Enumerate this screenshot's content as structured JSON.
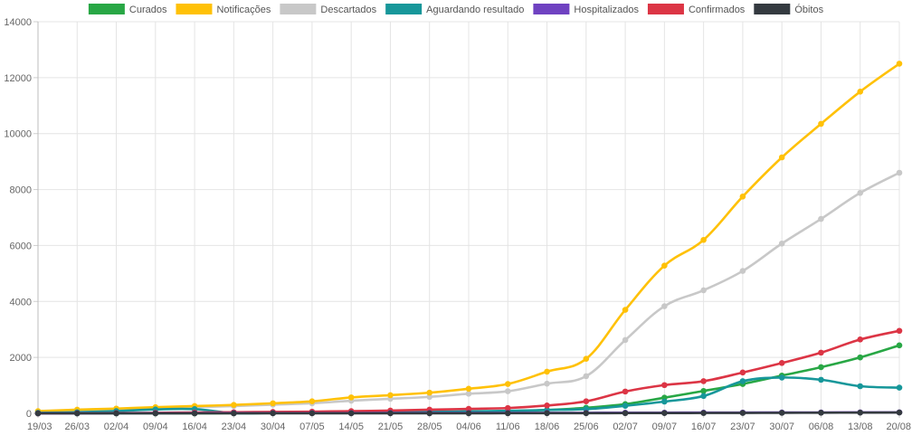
{
  "chart_data": {
    "type": "line",
    "title": "",
    "xlabel": "",
    "ylabel": "",
    "ylim": [
      0,
      14000
    ],
    "yticks": [
      0,
      2000,
      4000,
      6000,
      8000,
      10000,
      12000,
      14000
    ],
    "grid": true,
    "legend_position": "top-center",
    "categories": [
      "19/03",
      "26/03",
      "02/04",
      "09/04",
      "16/04",
      "23/04",
      "30/04",
      "07/05",
      "14/05",
      "21/05",
      "28/05",
      "04/06",
      "11/06",
      "18/06",
      "25/06",
      "02/07",
      "09/07",
      "16/07",
      "23/07",
      "30/07",
      "06/08",
      "13/08",
      "20/08"
    ],
    "series": [
      {
        "name": "Curados",
        "color": "#28a745",
        "values": [
          0,
          0,
          0,
          0,
          0,
          5,
          10,
          15,
          20,
          30,
          40,
          60,
          80,
          120,
          200,
          330,
          560,
          800,
          1050,
          1350,
          1650,
          2000,
          2430
        ]
      },
      {
        "name": "Notificações",
        "color": "#ffc107",
        "values": [
          80,
          130,
          170,
          220,
          260,
          300,
          360,
          430,
          570,
          650,
          740,
          880,
          1050,
          1490,
          1950,
          3700,
          5280,
          6200,
          7750,
          9150,
          10350,
          11500,
          12500
        ]
      },
      {
        "name": "Descartados",
        "color": "#c8c8c8",
        "values": [
          60,
          100,
          140,
          180,
          220,
          260,
          310,
          360,
          450,
          520,
          590,
          700,
          790,
          1060,
          1330,
          2620,
          3830,
          4400,
          5090,
          6070,
          6950,
          7880,
          8600
        ]
      },
      {
        "name": "Aguardando resultado",
        "color": "#17979a",
        "values": [
          20,
          40,
          80,
          140,
          150,
          10,
          15,
          20,
          35,
          50,
          60,
          70,
          90,
          120,
          150,
          270,
          420,
          620,
          1150,
          1280,
          1200,
          970,
          920
        ]
      },
      {
        "name": "Hospitalizados",
        "color": "#6f42c1",
        "values": [
          0,
          2,
          4,
          6,
          8,
          10,
          10,
          12,
          12,
          14,
          15,
          15,
          16,
          18,
          20,
          22,
          24,
          26,
          28,
          30,
          32,
          34,
          36
        ]
      },
      {
        "name": "Confirmados",
        "color": "#dc3545",
        "values": [
          0,
          5,
          10,
          20,
          30,
          40,
          50,
          60,
          80,
          100,
          130,
          160,
          190,
          280,
          430,
          780,
          1010,
          1150,
          1460,
          1800,
          2170,
          2640,
          2950
        ]
      },
      {
        "name": "Óbitos",
        "color": "#343a40",
        "values": [
          0,
          0,
          0,
          0,
          0,
          0,
          1,
          1,
          2,
          2,
          3,
          3,
          4,
          5,
          6,
          8,
          10,
          12,
          15,
          18,
          22,
          26,
          30
        ]
      }
    ]
  }
}
